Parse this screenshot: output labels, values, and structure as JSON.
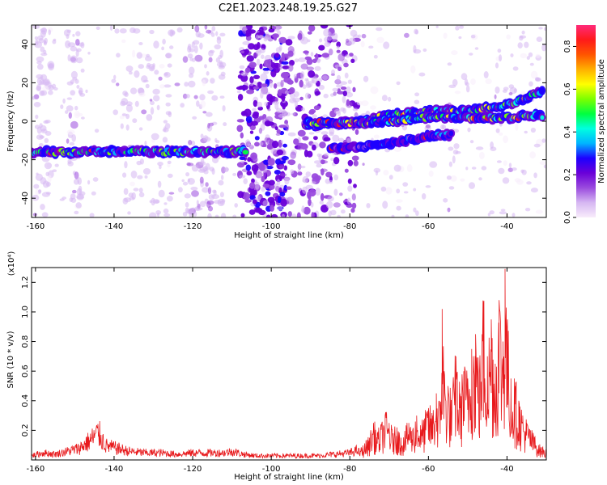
{
  "figure": {
    "title": "C2E1.2023.248.19.25.G27"
  },
  "chart_data": [
    {
      "type": "heatmap",
      "xlabel": "Height of straight line (km)",
      "ylabel": "Frequency (Hz)",
      "xlim": [
        -161,
        -30
      ],
      "ylim": [
        -50,
        50
      ],
      "xticks": [
        -160,
        -140,
        -120,
        -100,
        -80,
        -60,
        -40
      ],
      "yticks": [
        -40,
        -20,
        0,
        20,
        40
      ],
      "colorbar": {
        "label": "Normalized spectral amplitude",
        "range": [
          0,
          0.9
        ],
        "ticks": [
          0.0,
          0.2,
          0.4,
          0.6,
          0.8
        ],
        "colormap": "rainbow",
        "stops": [
          "#f8ecfb",
          "#d6b7f2",
          "#9a4bde",
          "#6a00d8",
          "#1d00ff",
          "#00b4ff",
          "#00ffe0",
          "#00ff40",
          "#7cff00",
          "#ffff00",
          "#ffb000",
          "#ff5500",
          "#ff1a1a",
          "#ff2a7a"
        ]
      },
      "ridges": [
        {
          "name": "",
          "x": [
            -161,
            -150,
            -140,
            -130,
            -120,
            -110,
            -106
          ],
          "y": [
            -16,
            -16,
            -15.5,
            -16,
            -16,
            -16,
            -15
          ]
        },
        {
          "name": "",
          "x": [
            -91,
            -80,
            -70,
            -60,
            -50,
            -40,
            -31
          ],
          "y": [
            -2,
            -1,
            3,
            5,
            6,
            8,
            16
          ]
        },
        {
          "name": "",
          "x": [
            -91,
            -80,
            -70,
            -60,
            -50,
            -40,
            -31
          ],
          "y": [
            -1,
            -1,
            0,
            2,
            2,
            2,
            3
          ]
        },
        {
          "name": "",
          "x": [
            -85,
            -76,
            -68,
            -60,
            -54
          ],
          "y": [
            -14,
            -13,
            -11,
            -8,
            -7
          ]
        }
      ]
    },
    {
      "type": "line",
      "xlabel": "Height of straight line (km)",
      "ylabel": "SNR (10 * v/v)",
      "y_multiplier_label": "(x10⁴)",
      "xlim": [
        -161,
        -30
      ],
      "ylim": [
        0,
        1.3
      ],
      "xticks": [
        -160,
        -140,
        -120,
        -100,
        -80,
        -60,
        -40
      ],
      "yticks": [
        0.2,
        0.4,
        0.6,
        0.8,
        1.0,
        1.2
      ],
      "ytick_labels": [
        "0.2",
        "0.4",
        "0.6",
        "0.8",
        "1.0",
        "1.2"
      ],
      "color": "#e8191c",
      "series": [
        {
          "name": "",
          "x": [
            -161,
            -158,
            -155,
            -152,
            -149,
            -146,
            -144,
            -142,
            -139,
            -136,
            -132,
            -128,
            -124,
            -120,
            -116,
            -112,
            -110,
            -107,
            -104,
            -100,
            -96,
            -92,
            -88,
            -84,
            -80,
            -77,
            -75,
            -74,
            -73,
            -72,
            -71,
            -70,
            -69,
            -68,
            -67,
            -66,
            -65,
            -64,
            -63,
            -62,
            -61,
            -60,
            -59,
            -58,
            -57,
            -56.5,
            -56,
            -55,
            -54,
            -53,
            -52,
            -51,
            -50,
            -49,
            -48,
            -47,
            -46,
            -45,
            -44,
            -43,
            -42,
            -41,
            -40.5,
            -40,
            -39,
            -38,
            -37,
            -36,
            -35,
            -34,
            -33,
            -32,
            -31,
            -30
          ],
          "y": [
            0.03,
            0.05,
            0.04,
            0.06,
            0.08,
            0.14,
            0.19,
            0.1,
            0.08,
            0.06,
            0.05,
            0.05,
            0.04,
            0.05,
            0.05,
            0.05,
            0.06,
            0.04,
            0.03,
            0.03,
            0.03,
            0.03,
            0.03,
            0.04,
            0.05,
            0.08,
            0.15,
            0.25,
            0.18,
            0.22,
            0.3,
            0.25,
            0.18,
            0.22,
            0.15,
            0.18,
            0.25,
            0.2,
            0.3,
            0.22,
            0.28,
            0.35,
            0.3,
            0.45,
            0.35,
            1.02,
            0.6,
            0.5,
            0.4,
            0.7,
            0.45,
            0.6,
            0.55,
            0.75,
            0.85,
            0.6,
            1.05,
            0.7,
            0.95,
            0.65,
            1.08,
            0.8,
            1.29,
            0.9,
            0.55,
            0.5,
            0.4,
            0.3,
            0.25,
            0.2,
            0.15,
            0.1,
            0.08,
            0.06
          ]
        }
      ]
    }
  ]
}
